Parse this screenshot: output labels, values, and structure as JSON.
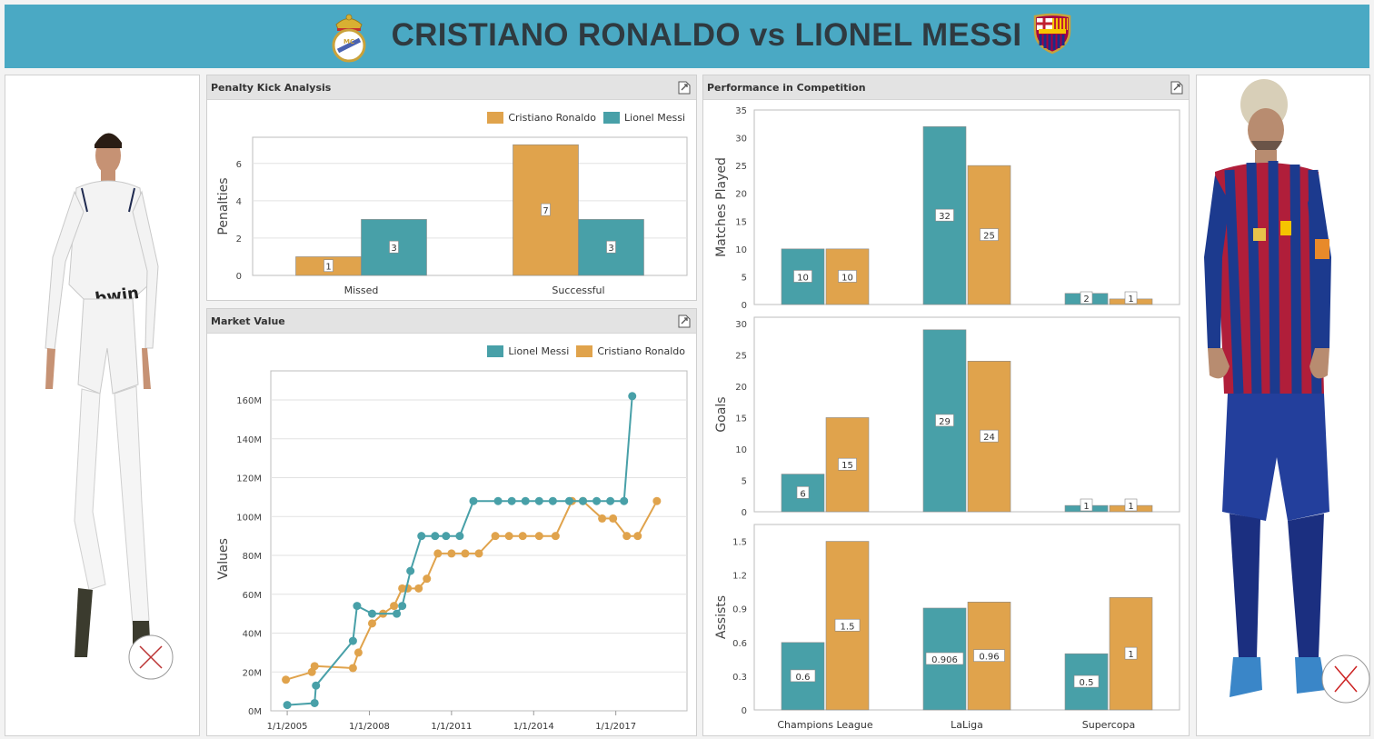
{
  "header": {
    "title": "CRISTIANO RONALDO vs LIONEL MESSI",
    "left_crest_icon": "real-madrid-crest-icon",
    "right_crest_icon": "fc-barcelona-crest-icon"
  },
  "colors": {
    "header_bg": "#4aa9c4",
    "ronaldo": "#e0a34c",
    "messi": "#48a0a8",
    "panel_head": "#e3e3e3"
  },
  "players": {
    "left": {
      "image": "cristiano-ronaldo-photo"
    },
    "right": {
      "image": "lionel-messi-photo"
    }
  },
  "penalty": {
    "title": "Penalty Kick Analysis",
    "legend": [
      "Cristiano Ronaldo",
      "Lionel Messi"
    ],
    "chart_data": {
      "type": "bar",
      "categories": [
        "Missed",
        "Successful"
      ],
      "series": [
        {
          "name": "Cristiano Ronaldo",
          "values": [
            1,
            7
          ]
        },
        {
          "name": "Lionel Messi",
          "values": [
            3,
            3
          ]
        }
      ],
      "ylabel": "Penalties",
      "ylim": [
        0,
        7.4
      ],
      "yticks": [
        0,
        2,
        4,
        6
      ],
      "grid": true,
      "legend_position": "top-right"
    }
  },
  "market": {
    "title": "Market Value",
    "legend": [
      "Lionel Messi",
      "Cristiano Ronaldo"
    ],
    "chart_data": {
      "type": "line",
      "ylabel": "Values",
      "ylim": [
        0,
        175
      ],
      "yticks": [
        "0M",
        "20M",
        "40M",
        "60M",
        "80M",
        "100M",
        "120M",
        "140M",
        "160M"
      ],
      "xticks": [
        "1/1/2005",
        "1/1/2008",
        "1/1/2011",
        "1/1/2014",
        "1/1/2017"
      ],
      "x_range": [
        2004.4,
        2019.6
      ],
      "grid": true,
      "legend_position": "top-right",
      "series": [
        {
          "name": "Lionel Messi",
          "x": [
            2005.0,
            2006.0,
            2006.05,
            2007.4,
            2007.55,
            2008.1,
            2009.0,
            2009.2,
            2009.5,
            2009.9,
            2010.4,
            2010.8,
            2011.3,
            2011.8,
            2012.7,
            2013.2,
            2013.7,
            2014.2,
            2014.7,
            2015.3,
            2015.8,
            2016.3,
            2016.8,
            2017.3,
            2017.6
          ],
          "y": [
            3,
            4,
            13,
            36,
            54,
            50,
            50,
            54,
            72,
            90,
            90,
            90,
            90,
            108,
            108,
            108,
            108,
            108,
            108,
            108,
            108,
            108,
            108,
            108,
            162
          ]
        },
        {
          "name": "Cristiano Ronaldo",
          "x": [
            2004.95,
            2005.9,
            2006.0,
            2007.4,
            2007.6,
            2008.1,
            2008.5,
            2008.9,
            2009.2,
            2009.4,
            2009.8,
            2010.1,
            2010.5,
            2011.0,
            2011.5,
            2012.0,
            2012.6,
            2013.1,
            2013.6,
            2014.2,
            2014.8,
            2015.4,
            2015.8,
            2016.5,
            2016.9,
            2017.4,
            2017.8,
            2018.5
          ],
          "y": [
            16,
            20,
            23,
            22,
            30,
            45,
            50,
            54,
            63,
            63,
            63,
            68,
            81,
            81,
            81,
            81,
            90,
            90,
            90,
            90,
            90,
            108,
            108,
            99,
            99,
            90,
            90,
            108
          ]
        }
      ]
    }
  },
  "performance": {
    "title": "Performance in Competition",
    "chart_data": [
      {
        "type": "bar",
        "ylabel": "Matches Played",
        "ylim": [
          0,
          35
        ],
        "yticks": [
          "0",
          "5",
          "10",
          "15",
          "20",
          "25",
          "30",
          "35"
        ],
        "categories": [
          "Champions League",
          "LaLiga",
          "Supercopa"
        ],
        "series": [
          {
            "name": "Lionel Messi",
            "values": [
              10,
              32,
              2
            ],
            "labels": [
              "10",
              "32",
              "2"
            ]
          },
          {
            "name": "Cristiano Ronaldo",
            "values": [
              10,
              25,
              1
            ],
            "labels": [
              "10",
              "25",
              "1"
            ]
          }
        ]
      },
      {
        "type": "bar",
        "ylabel": "Goals",
        "ylim": [
          0,
          31
        ],
        "yticks": [
          "0",
          "5",
          "10",
          "15",
          "20",
          "25",
          "30"
        ],
        "categories": [
          "Champions League",
          "LaLiga",
          "Supercopa"
        ],
        "series": [
          {
            "name": "Lionel Messi",
            "values": [
              6,
              29,
              1
            ],
            "labels": [
              "6",
              "29",
              "1"
            ]
          },
          {
            "name": "Cristiano Ronaldo",
            "values": [
              15,
              24,
              1
            ],
            "labels": [
              "15",
              "24",
              "1"
            ]
          }
        ]
      },
      {
        "type": "bar",
        "ylabel": "Assists",
        "ylim": [
          0,
          1.65
        ],
        "yticks": [
          "0",
          "0.3",
          "0.6",
          "0.9",
          "1.2",
          "1.5"
        ],
        "categories": [
          "Champions League",
          "LaLiga",
          "Supercopa"
        ],
        "series": [
          {
            "name": "Lionel Messi",
            "values": [
              0.6,
              0.906,
              0.5
            ],
            "labels": [
              "0.6",
              "0.906",
              "0.5"
            ]
          },
          {
            "name": "Cristiano Ronaldo",
            "values": [
              1.5,
              0.96,
              1
            ],
            "labels": [
              "1.5",
              "0.96",
              "1"
            ]
          }
        ]
      }
    ]
  }
}
